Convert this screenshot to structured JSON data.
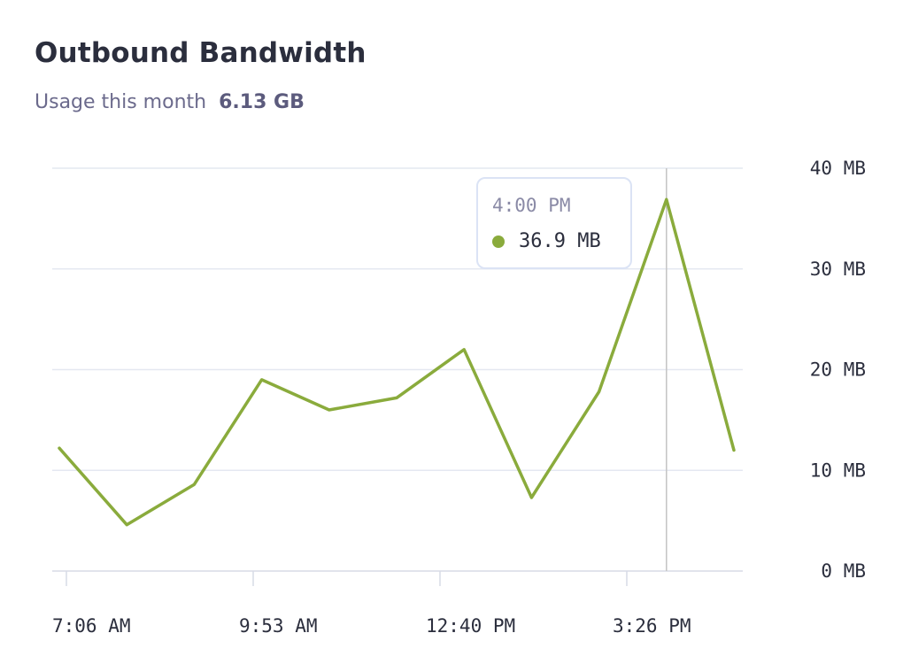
{
  "header": {
    "title": "Outbound Bandwidth",
    "usage_label": "Usage this month",
    "usage_value": "6.13 GB"
  },
  "tooltip": {
    "time": "4:00 PM",
    "value": "36.9 MB"
  },
  "colors": {
    "series": "#8aab3c",
    "grid": "#e4e8f1",
    "cursor": "#c4c4c4",
    "axis": "#d7dbe6"
  },
  "chart_data": {
    "type": "line",
    "title": "Outbound Bandwidth",
    "x_ticks": [
      "7:06 AM",
      "9:53 AM",
      "12:40 PM",
      "3:26 PM"
    ],
    "y_ticks": [
      "0 MB",
      "10 MB",
      "20 MB",
      "30 MB",
      "40 MB"
    ],
    "ylim": [
      0,
      40
    ],
    "grid": true,
    "y_axis_side": "right",
    "series": [
      {
        "values": [
          12.2,
          4.6,
          8.6,
          19.0,
          16.0,
          17.2,
          22.0,
          7.3,
          17.8,
          36.9,
          12.0
        ]
      }
    ],
    "highlight": {
      "index": 9,
      "label": "4:00 PM",
      "value": 36.9
    }
  }
}
